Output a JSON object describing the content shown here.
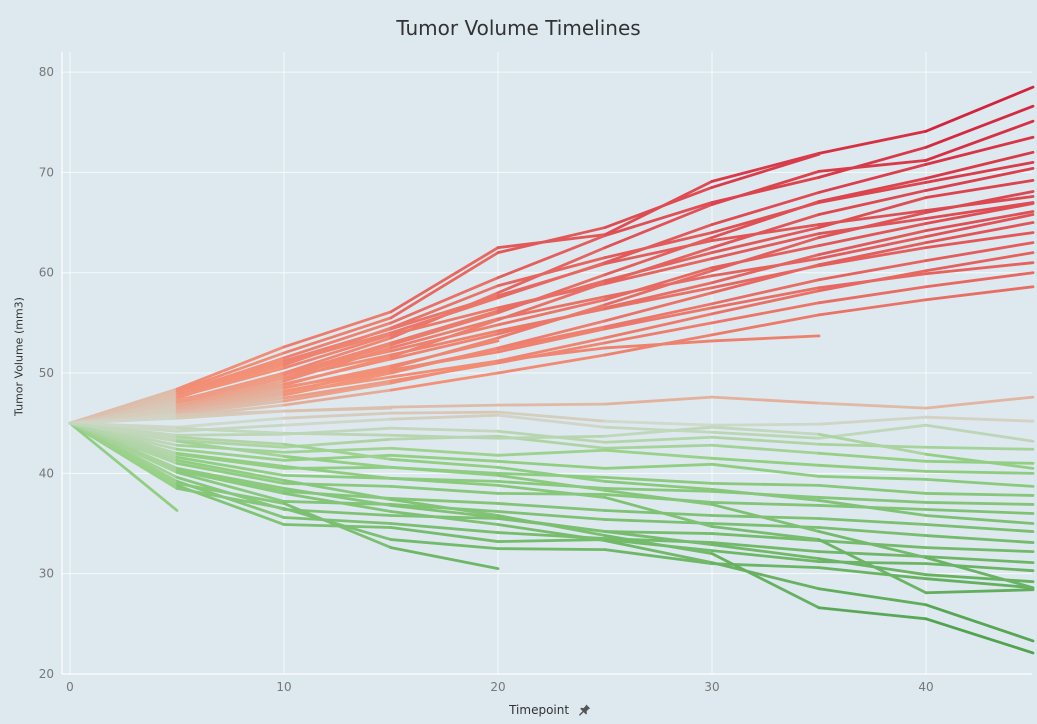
{
  "chart_data": {
    "type": "line",
    "title": "Tumor Volume Timelines",
    "xlabel": "Timepoint",
    "ylabel": "Tumor Volume (mm3)",
    "xlim": [
      0,
      45
    ],
    "ylim": [
      20,
      82
    ],
    "xticks": [
      0,
      10,
      20,
      30,
      40
    ],
    "yticks": [
      20,
      30,
      40,
      50,
      60,
      70,
      80
    ],
    "grid": true,
    "legend": "none",
    "color_scale": {
      "low": "#4b9e4b",
      "mid": "#cfd9cc",
      "high": "#d01c38",
      "center_value": 45
    },
    "series": [
      {
        "x": [
          0,
          5,
          10,
          15,
          20,
          25,
          30,
          35,
          40,
          45
        ],
        "y": [
          45,
          48.4,
          52.6,
          56.1,
          62.5,
          63.8,
          69.1,
          71.9,
          74.1,
          78.5
        ]
      },
      {
        "x": [
          0,
          5,
          10,
          15,
          20,
          25,
          30,
          35,
          40,
          45
        ],
        "y": [
          45,
          48,
          51.5,
          55,
          59.5,
          63.7,
          67,
          69.5,
          72.5,
          76.6
        ]
      },
      {
        "x": [
          0,
          5,
          10,
          15,
          20,
          25,
          30,
          35,
          40,
          45
        ],
        "y": [
          45,
          47.2,
          50,
          53.5,
          58,
          62.5,
          66.8,
          70.1,
          71.2,
          75.1
        ]
      },
      {
        "x": [
          0,
          5,
          10,
          15,
          20,
          25,
          30,
          35
        ],
        "y": [
          45,
          48.2,
          52,
          55.5,
          62,
          64.5,
          68.5,
          71.8
        ]
      },
      {
        "x": [
          0,
          5,
          10,
          15,
          20,
          25,
          30,
          35,
          40,
          45
        ],
        "y": [
          45,
          47.5,
          51,
          54,
          57.5,
          61,
          64.8,
          68,
          70.8,
          73.5
        ]
      },
      {
        "x": [
          0,
          5,
          10,
          15,
          20,
          25,
          30,
          35,
          40,
          45
        ],
        "y": [
          45,
          46.8,
          49.5,
          52.8,
          56,
          59.8,
          63.5,
          67.1,
          69.4,
          72
        ]
      },
      {
        "x": [
          0,
          5,
          10,
          15,
          20,
          25,
          30,
          35,
          40,
          45
        ],
        "y": [
          45,
          47.8,
          50.8,
          54.5,
          58.7,
          61.5,
          64,
          67,
          69,
          71
        ]
      },
      {
        "x": [
          0,
          5,
          10,
          15,
          20,
          25,
          30,
          35,
          40,
          45
        ],
        "y": [
          45,
          46.5,
          48.8,
          51.6,
          55.3,
          59,
          62.5,
          65.8,
          68.2,
          70.4
        ]
      },
      {
        "x": [
          0,
          5,
          10,
          15,
          20,
          25,
          30,
          35,
          40,
          45
        ],
        "y": [
          45,
          47,
          49.8,
          53,
          56.2,
          59.2,
          62,
          64.5,
          67.5,
          69.2
        ]
      },
      {
        "x": [
          0,
          5,
          10,
          15,
          20,
          25,
          30,
          35,
          40,
          45
        ],
        "y": [
          45,
          46.2,
          48,
          50.5,
          53.5,
          56.8,
          60.2,
          63.5,
          66,
          68.1
        ]
      },
      {
        "x": [
          0,
          5,
          10,
          15,
          20,
          25,
          30,
          35,
          40,
          45
        ],
        "y": [
          45,
          47.6,
          50.5,
          53.8,
          56.5,
          58.9,
          61.4,
          63.9,
          65.4,
          67
        ]
      },
      {
        "x": [
          0,
          5,
          10,
          15,
          20,
          25,
          30,
          35,
          40,
          45
        ],
        "y": [
          45,
          46.7,
          48.9,
          51.4,
          53.9,
          56.5,
          59,
          61.8,
          64.2,
          66.1
        ]
      },
      {
        "x": [
          0,
          5,
          10,
          15,
          20,
          25,
          30,
          35,
          40,
          45
        ],
        "y": [
          45,
          46,
          47.8,
          50,
          52.5,
          55.2,
          58,
          60.8,
          63,
          65
        ]
      },
      {
        "x": [
          0,
          5,
          10,
          15,
          20,
          25,
          30,
          35,
          40,
          45
        ],
        "y": [
          45,
          47.3,
          49.5,
          51.8,
          54.2,
          56.4,
          58.5,
          60.7,
          62.5,
          64
        ]
      },
      {
        "x": [
          0,
          5,
          10,
          15,
          20,
          25,
          30,
          35,
          40,
          45
        ],
        "y": [
          45,
          46.4,
          48.2,
          50.2,
          52.4,
          54.6,
          56.9,
          59.3,
          61.2,
          63
        ]
      },
      {
        "x": [
          0,
          5,
          10,
          15,
          20,
          25,
          30,
          35,
          40,
          45
        ],
        "y": [
          45,
          45.9,
          47.2,
          49,
          51.2,
          53.5,
          55.9,
          58.2,
          60.2,
          62
        ]
      },
      {
        "x": [
          0,
          5,
          10,
          15,
          20,
          25,
          30,
          35,
          40,
          45
        ],
        "y": [
          45,
          46.8,
          48.6,
          50.3,
          52.1,
          54.4,
          56.5,
          58.5,
          59.9,
          61
        ]
      },
      {
        "x": [
          0,
          5,
          10,
          15,
          20,
          25,
          30,
          35,
          40,
          45
        ],
        "y": [
          45,
          46.1,
          47.5,
          49.2,
          51,
          53,
          55,
          57,
          58.6,
          60
        ]
      },
      {
        "x": [
          0,
          5,
          10,
          15,
          20,
          25,
          30,
          35,
          40,
          45
        ],
        "y": [
          45,
          45.7,
          46.8,
          48.3,
          50,
          51.8,
          53.8,
          55.8,
          57.3,
          58.6
        ]
      },
      {
        "x": [
          0,
          5,
          10,
          15,
          20,
          25,
          30,
          35
        ],
        "y": [
          45,
          46.3,
          48,
          49.6,
          51.2,
          52.5,
          53.2,
          53.7
        ]
      },
      {
        "x": [
          0,
          5,
          10,
          15,
          20,
          25,
          30,
          35,
          40,
          45
        ],
        "y": [
          45,
          47.9,
          51.2,
          54.4,
          57.7,
          60.9,
          63.2,
          64.8,
          66.2,
          67.6
        ]
      },
      {
        "x": [
          0,
          5,
          10,
          15,
          20,
          25,
          30,
          35,
          40,
          45
        ],
        "y": [
          45,
          46.6,
          49.2,
          52.5,
          55.4,
          57.6,
          59.7,
          61.4,
          63.6,
          65.8
        ]
      },
      {
        "x": [
          0,
          5,
          10,
          15,
          20,
          25,
          30,
          35,
          40,
          45
        ],
        "y": [
          45,
          47.1,
          49.9,
          52.2,
          54.8,
          57.3,
          60.5,
          62.7,
          64.9,
          66.9
        ]
      },
      {
        "x": [
          0,
          5,
          10,
          15,
          20
        ],
        "y": [
          45,
          46.5,
          48.5,
          50.7,
          53.2
        ]
      },
      {
        "x": [
          0,
          5,
          10,
          15
        ],
        "y": [
          45,
          45.8,
          46.2,
          46.5
        ]
      },
      {
        "x": [
          0,
          5,
          10,
          15,
          20,
          25,
          30,
          35,
          40,
          45
        ],
        "y": [
          45,
          45.5,
          46.2,
          46.6,
          46.8,
          46.9,
          47.6,
          47,
          46.5,
          47.6
        ]
      },
      {
        "x": [
          0,
          5,
          10,
          15,
          20,
          25,
          30,
          35,
          40,
          45
        ],
        "y": [
          45,
          44.6,
          45.5,
          46,
          46.1,
          45.2,
          44.8,
          44.9,
          45.6,
          45.2
        ]
      },
      {
        "x": [
          0,
          5,
          10,
          15,
          20,
          25,
          30,
          35,
          40,
          45
        ],
        "y": [
          45,
          44.2,
          44.8,
          45.4,
          45.8,
          44.6,
          44.1,
          43.5,
          44.8,
          43.2
        ]
      },
      {
        "x": [
          0,
          5,
          10,
          15,
          20,
          25,
          30,
          35,
          40,
          45
        ],
        "y": [
          45,
          43.8,
          43.9,
          44.5,
          44.2,
          43.1,
          43.6,
          42.9,
          42.6,
          42.4
        ]
      },
      {
        "x": [
          0,
          5,
          10,
          15,
          20,
          25,
          30,
          35,
          40,
          45
        ],
        "y": [
          45,
          43.3,
          42.6,
          43.4,
          43.7,
          42.5,
          42.8,
          42,
          41.2,
          41
        ]
      },
      {
        "x": [
          0,
          5,
          10,
          15,
          20,
          25,
          30,
          35,
          40,
          45
        ],
        "y": [
          45,
          42.8,
          42.1,
          42.5,
          41.8,
          42.3,
          41.5,
          40.8,
          40.2,
          40
        ]
      },
      {
        "x": [
          0,
          5,
          10,
          15,
          20,
          25,
          30,
          35,
          40,
          45
        ],
        "y": [
          45,
          42.4,
          41.3,
          41.8,
          41.2,
          40.5,
          40.9,
          39.7,
          39.4,
          38.7
        ]
      },
      {
        "x": [
          0,
          5,
          10,
          15,
          20,
          25,
          30,
          35,
          40,
          45
        ],
        "y": [
          45,
          41.9,
          40.5,
          40.6,
          40,
          39.6,
          39,
          38.8,
          38,
          37.8
        ]
      },
      {
        "x": [
          0,
          5,
          10,
          15,
          20,
          25,
          30,
          35,
          40,
          45
        ],
        "y": [
          45,
          41.6,
          39.8,
          39.5,
          39.2,
          38.5,
          38.2,
          37.6,
          37.1,
          36.9
        ]
      },
      {
        "x": [
          0,
          5,
          10,
          15,
          20,
          25,
          30,
          35,
          40,
          45
        ],
        "y": [
          45,
          41,
          39,
          38.7,
          38,
          37.9,
          37.1,
          36.8,
          36.4,
          36
        ]
      },
      {
        "x": [
          0,
          5,
          10,
          15,
          20,
          25,
          30,
          35,
          40,
          45
        ],
        "y": [
          45,
          40.5,
          38.2,
          37.5,
          37,
          36.3,
          35.8,
          35.5,
          34.9,
          34.2
        ]
      },
      {
        "x": [
          0,
          5,
          10,
          15,
          20,
          25,
          30,
          35,
          40,
          45
        ],
        "y": [
          45,
          40.1,
          37.2,
          36.9,
          36.2,
          35.4,
          35,
          34.6,
          33.8,
          33.1
        ]
      },
      {
        "x": [
          0,
          5,
          10,
          15,
          20,
          25,
          30,
          35,
          40,
          45
        ],
        "y": [
          45,
          39.6,
          36.4,
          35.8,
          35.5,
          34.2,
          34,
          33.3,
          32.6,
          32.2
        ]
      },
      {
        "x": [
          0,
          5,
          10,
          15,
          20,
          25,
          30,
          35,
          40,
          45
        ],
        "y": [
          45,
          39.2,
          35.6,
          35,
          34.1,
          33.5,
          33.1,
          32.2,
          31.7,
          31.1
        ]
      },
      {
        "x": [
          0,
          5,
          10,
          15,
          20,
          25,
          30,
          35,
          40,
          45
        ],
        "y": [
          45,
          38.8,
          34.9,
          34.6,
          33.2,
          33.4,
          32.3,
          31.2,
          31,
          30.3
        ]
      },
      {
        "x": [
          0,
          5,
          10,
          15,
          20,
          25,
          30,
          35,
          40,
          45
        ],
        "y": [
          45,
          38.5,
          36.5,
          33.4,
          32.5,
          32.4,
          31,
          30.6,
          29.5,
          28.6
        ]
      },
      {
        "x": [
          0,
          5,
          10,
          15,
          20,
          25,
          30,
          35,
          40,
          45
        ],
        "y": [
          45,
          40.5,
          38.5,
          36.8,
          35.6,
          34.2,
          32.9,
          31.5,
          29.9,
          29.2
        ]
      },
      {
        "x": [
          0,
          5,
          10,
          15,
          20
        ],
        "y": [
          45,
          39,
          37,
          32.6,
          30.5
        ]
      },
      {
        "x": [
          0,
          5
        ],
        "y": [
          45,
          36.3
        ]
      },
      {
        "x": [
          0,
          5,
          10,
          15,
          20,
          25,
          30,
          35,
          40,
          45
        ],
        "y": [
          45,
          40.3,
          38,
          36.2,
          34.9,
          33.3,
          31.1,
          28.5,
          26.9,
          23.3
        ]
      },
      {
        "x": [
          0,
          5,
          10,
          15,
          20,
          25,
          30,
          35,
          40,
          45
        ],
        "y": [
          45,
          41.3,
          39.3,
          37.4,
          35.8,
          33.8,
          32,
          26.6,
          25.5,
          22.1
        ]
      },
      {
        "x": [
          0,
          5,
          10,
          15,
          20,
          25,
          30,
          35,
          40,
          45
        ],
        "y": [
          45,
          43.2,
          41.7,
          40.6,
          39.8,
          38.3,
          36.9,
          34.2,
          31.6,
          28.6
        ]
      },
      {
        "x": [
          0,
          5,
          10,
          15,
          20,
          25,
          30,
          35,
          40,
          45
        ],
        "y": [
          45,
          42,
          40.7,
          39.5,
          38.8,
          37.6,
          34.7,
          33.4,
          28.1,
          28.4
        ]
      },
      {
        "x": [
          0,
          5,
          10,
          15,
          20,
          25,
          30,
          35,
          40,
          45
        ],
        "y": [
          45,
          44.5,
          44,
          43.8,
          43.5,
          43.7,
          44.6,
          43.9,
          41.9,
          40.5
        ]
      },
      {
        "x": [
          0,
          5,
          10,
          15,
          20,
          25,
          30,
          35,
          40,
          45
        ],
        "y": [
          45,
          43.6,
          42.9,
          41.4,
          40.6,
          39.2,
          38.4,
          37.3,
          35.8,
          35
        ]
      }
    ]
  }
}
